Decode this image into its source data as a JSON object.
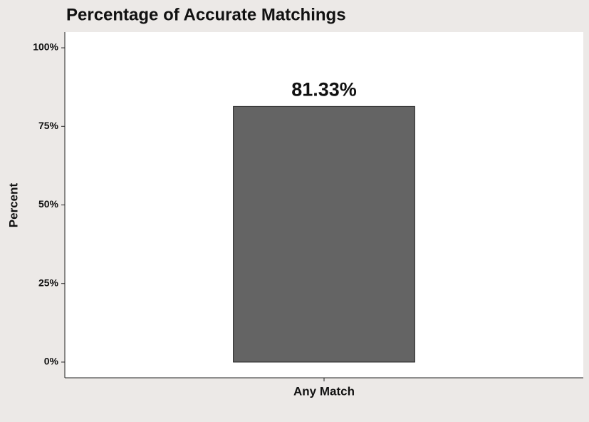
{
  "chart_data": {
    "type": "bar",
    "title": "Percentage of Accurate Matchings",
    "y_label": "Percent",
    "categories": [
      "Any Match"
    ],
    "values": [
      81.33
    ],
    "value_labels": [
      "81.33%"
    ],
    "color": "#646464",
    "ylim": [
      -5,
      105
    ],
    "yticks": [
      {
        "value": 0,
        "label": "0%"
      },
      {
        "value": 25,
        "label": "25%"
      },
      {
        "value": 50,
        "label": "50%"
      },
      {
        "value": 75,
        "label": "75%"
      },
      {
        "value": 100,
        "label": "100%"
      }
    ],
    "grid": false
  }
}
